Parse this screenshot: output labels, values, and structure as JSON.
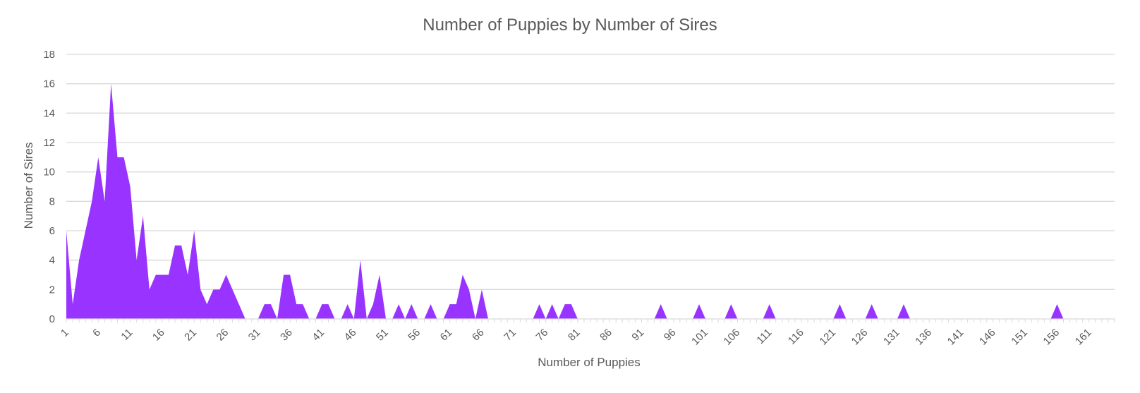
{
  "chart_data": {
    "type": "area",
    "title": "Number of Puppies by Number of Sires",
    "xlabel": "Number of Puppies",
    "ylabel": "Number of Sires",
    "ylim": [
      0,
      18
    ],
    "yticks": [
      "0",
      "2",
      "4",
      "6",
      "8",
      "10",
      "12",
      "14",
      "16",
      "18"
    ],
    "xlim": [
      1,
      165
    ],
    "xtick_labels": [
      "1",
      "6",
      "11",
      "16",
      "21",
      "26",
      "31",
      "36",
      "41",
      "46",
      "51",
      "56",
      "61",
      "66",
      "71",
      "76",
      "81",
      "86",
      "91",
      "96",
      "101",
      "106",
      "111",
      "116",
      "121",
      "126",
      "131",
      "136",
      "141",
      "146",
      "151",
      "156",
      "161"
    ],
    "grid": true,
    "legend": "none",
    "colors": {
      "fill": "#9933ff",
      "grid": "#d9d9d9",
      "text": "#595959"
    },
    "series": [
      {
        "x": [
          1,
          2,
          3,
          4,
          5,
          6,
          7,
          8,
          9,
          10,
          11,
          12,
          13,
          14,
          15,
          16,
          17,
          18,
          19,
          20,
          21,
          22,
          23,
          24,
          25,
          26,
          27,
          28,
          29,
          30,
          31,
          32,
          33,
          34,
          35,
          36,
          37,
          38,
          39,
          40,
          41,
          42,
          43,
          44,
          45,
          46,
          47,
          48,
          49,
          50,
          51,
          52,
          53,
          54,
          55,
          56,
          57,
          58,
          59,
          60,
          61,
          62,
          63,
          64,
          65,
          66,
          67,
          68,
          69,
          70,
          71,
          72,
          73,
          74,
          75,
          76,
          77,
          78,
          79,
          80,
          81,
          82,
          83,
          84,
          85,
          86,
          87,
          88,
          89,
          90,
          91,
          92,
          93,
          94,
          95,
          96,
          97,
          98,
          99,
          100,
          101,
          102,
          103,
          104,
          105,
          106,
          107,
          108,
          109,
          110,
          111,
          112,
          113,
          114,
          115,
          116,
          117,
          118,
          119,
          120,
          121,
          122,
          123,
          124,
          125,
          126,
          127,
          128,
          129,
          130,
          131,
          132,
          133,
          134,
          135,
          136,
          137,
          138,
          139,
          140,
          141,
          142,
          143,
          144,
          145,
          146,
          147,
          148,
          149,
          150,
          151,
          152,
          153,
          154,
          155,
          156,
          157,
          158,
          159,
          160,
          161,
          162,
          163,
          164,
          165
        ],
        "values": [
          6,
          1,
          4,
          6,
          8,
          11,
          8,
          16,
          11,
          11,
          9,
          4,
          7,
          2,
          3,
          3,
          3,
          5,
          5,
          3,
          6,
          2,
          1,
          2,
          2,
          3,
          2,
          1,
          0,
          0,
          0,
          1,
          1,
          0,
          3,
          3,
          1,
          1,
          0,
          0,
          1,
          1,
          0,
          0,
          1,
          0,
          4,
          0,
          1,
          3,
          0,
          0,
          1,
          0,
          1,
          0,
          0,
          1,
          0,
          0,
          1,
          1,
          3,
          2,
          0,
          2,
          0,
          0,
          0,
          0,
          0,
          0,
          0,
          0,
          1,
          0,
          1,
          0,
          1,
          1,
          0,
          0,
          0,
          0,
          0,
          0,
          0,
          0,
          0,
          0,
          0,
          0,
          0,
          1,
          0,
          0,
          0,
          0,
          0,
          1,
          0,
          0,
          0,
          0,
          1,
          0,
          0,
          0,
          0,
          0,
          1,
          0,
          0,
          0,
          0,
          0,
          0,
          0,
          0,
          0,
          0,
          1,
          0,
          0,
          0,
          0,
          1,
          0,
          0,
          0,
          0,
          1,
          0,
          0,
          0,
          0,
          0,
          0,
          0,
          0,
          0,
          0,
          0,
          0,
          0,
          0,
          0,
          0,
          0,
          0,
          0,
          0,
          0,
          0,
          0,
          1,
          0,
          0,
          0,
          0,
          0,
          0,
          0,
          0,
          0
        ]
      }
    ]
  }
}
